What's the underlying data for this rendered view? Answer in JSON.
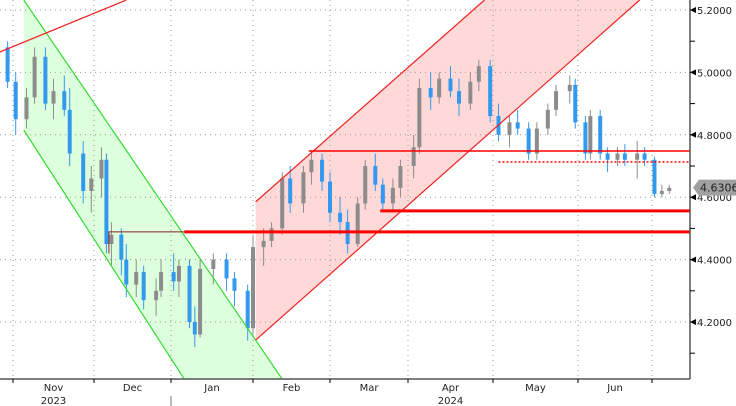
{
  "chart_data": {
    "type": "candlestick",
    "title": "",
    "ylim": [
      4.05,
      5.23
    ],
    "xlim": [
      "2023-10-26",
      "2024-07-15"
    ],
    "y_ticks": [
      "4.2000",
      "4.4000",
      "4.6000",
      "4.8000",
      "5.0000",
      "5.2000"
    ],
    "y_axis_side": "right",
    "x_month_labels": [
      "Nov",
      "Dec",
      "Jan",
      "Feb",
      "Mar",
      "Apr",
      "May",
      "Jun"
    ],
    "x_month_starts": [
      "2023-11-01",
      "2023-12-01",
      "2024-01-01",
      "2024-02-01",
      "2024-03-01",
      "2024-04-01",
      "2024-05-01",
      "2024-06-01",
      "2024-07-01"
    ],
    "x_year_labels": [
      {
        "label": "2023",
        "month": "2023-11"
      },
      {
        "label": "2024",
        "month": "2024-04"
      }
    ],
    "grid": true,
    "last_price": "4.6306",
    "colors": {
      "up": "#8c8c8c",
      "down": "#3399ee",
      "green_channel": "#33dd33",
      "green_fill": "#ddffdd",
      "red_channel": "#ee2222",
      "red_fill": "#ffd8d8",
      "level": "#ff0000",
      "last_price_bg": "#a0a0a0"
    },
    "candles": [
      [
        "2023-10-26",
        5.02,
        5.1,
        4.98,
        5.08
      ],
      [
        "2023-10-30",
        5.08,
        5.1,
        4.95,
        4.97
      ],
      [
        "2023-11-02",
        4.97,
        5.0,
        4.8,
        4.85
      ],
      [
        "2023-11-06",
        4.85,
        4.95,
        4.82,
        4.92
      ],
      [
        "2023-11-09",
        4.92,
        5.08,
        4.9,
        5.05
      ],
      [
        "2023-11-13",
        5.05,
        5.08,
        4.88,
        4.9
      ],
      [
        "2023-11-16",
        4.9,
        4.98,
        4.85,
        4.94
      ],
      [
        "2023-11-20",
        4.94,
        4.99,
        4.86,
        4.88
      ],
      [
        "2023-11-22",
        4.88,
        4.95,
        4.7,
        4.74
      ],
      [
        "2023-11-27",
        4.74,
        4.78,
        4.58,
        4.62
      ],
      [
        "2023-11-30",
        4.62,
        4.7,
        4.55,
        4.66
      ],
      [
        "2023-12-04",
        4.66,
        4.76,
        4.6,
        4.72
      ],
      [
        "2023-12-06",
        4.72,
        4.74,
        4.42,
        4.45
      ],
      [
        "2023-12-08",
        4.45,
        4.52,
        4.38,
        4.48
      ],
      [
        "2023-12-12",
        4.48,
        4.5,
        4.35,
        4.4
      ],
      [
        "2023-12-14",
        4.4,
        4.45,
        4.28,
        4.32
      ],
      [
        "2023-12-18",
        4.32,
        4.4,
        4.28,
        4.36
      ],
      [
        "2023-12-21",
        4.36,
        4.38,
        4.24,
        4.27
      ],
      [
        "2023-12-26",
        4.27,
        4.34,
        4.22,
        4.3
      ],
      [
        "2023-12-28",
        4.3,
        4.4,
        4.28,
        4.36
      ],
      [
        "2024-01-02",
        4.36,
        4.42,
        4.3,
        4.33
      ],
      [
        "2024-01-04",
        4.33,
        4.4,
        4.28,
        4.38
      ],
      [
        "2024-01-08",
        4.38,
        4.4,
        4.18,
        4.2
      ],
      [
        "2024-01-10",
        4.2,
        4.25,
        4.12,
        4.16
      ],
      [
        "2024-01-12",
        4.16,
        4.4,
        4.15,
        4.37
      ],
      [
        "2024-01-17",
        4.37,
        4.42,
        4.32,
        4.4
      ],
      [
        "2024-01-22",
        4.4,
        4.42,
        4.3,
        4.34
      ],
      [
        "2024-01-25",
        4.34,
        4.36,
        4.25,
        4.3
      ],
      [
        "2024-01-30",
        4.3,
        4.32,
        4.14,
        4.18
      ],
      [
        "2024-02-01",
        4.18,
        4.48,
        4.16,
        4.44
      ],
      [
        "2024-02-05",
        4.44,
        4.5,
        4.38,
        4.46
      ],
      [
        "2024-02-08",
        4.46,
        4.52,
        4.44,
        4.5
      ],
      [
        "2024-02-12",
        4.5,
        4.68,
        4.48,
        4.66
      ],
      [
        "2024-02-15",
        4.66,
        4.7,
        4.55,
        4.58
      ],
      [
        "2024-02-20",
        4.58,
        4.7,
        4.55,
        4.68
      ],
      [
        "2024-02-23",
        4.68,
        4.75,
        4.64,
        4.72
      ],
      [
        "2024-02-27",
        4.72,
        4.74,
        4.62,
        4.65
      ],
      [
        "2024-03-01",
        4.65,
        4.68,
        4.52,
        4.55
      ],
      [
        "2024-03-05",
        4.55,
        4.6,
        4.48,
        4.52
      ],
      [
        "2024-03-08",
        4.52,
        4.56,
        4.42,
        4.45
      ],
      [
        "2024-03-12",
        4.45,
        4.6,
        4.44,
        4.58
      ],
      [
        "2024-03-15",
        4.58,
        4.72,
        4.56,
        4.7
      ],
      [
        "2024-03-19",
        4.7,
        4.74,
        4.62,
        4.64
      ],
      [
        "2024-03-22",
        4.64,
        4.66,
        4.56,
        4.58
      ],
      [
        "2024-03-26",
        4.58,
        4.66,
        4.56,
        4.63
      ],
      [
        "2024-03-29",
        4.63,
        4.72,
        4.6,
        4.7
      ],
      [
        "2024-04-03",
        4.7,
        4.8,
        4.66,
        4.76
      ],
      [
        "2024-04-05",
        4.76,
        4.98,
        4.74,
        4.95
      ],
      [
        "2024-04-09",
        4.95,
        5.0,
        4.88,
        4.92
      ],
      [
        "2024-04-12",
        4.92,
        5.0,
        4.9,
        4.98
      ],
      [
        "2024-04-16",
        4.98,
        5.02,
        4.92,
        4.94
      ],
      [
        "2024-04-19",
        4.94,
        4.98,
        4.86,
        4.9
      ],
      [
        "2024-04-23",
        4.9,
        5.0,
        4.88,
        4.97
      ],
      [
        "2024-04-26",
        4.97,
        5.04,
        4.94,
        5.02
      ],
      [
        "2024-04-30",
        5.02,
        5.04,
        4.84,
        4.86
      ],
      [
        "2024-05-03",
        4.86,
        4.9,
        4.78,
        4.8
      ],
      [
        "2024-05-07",
        4.8,
        4.86,
        4.76,
        4.84
      ],
      [
        "2024-05-10",
        4.84,
        4.88,
        4.8,
        4.82
      ],
      [
        "2024-05-14",
        4.82,
        4.84,
        4.72,
        4.74
      ],
      [
        "2024-05-17",
        4.74,
        4.84,
        4.72,
        4.82
      ],
      [
        "2024-05-21",
        4.82,
        4.9,
        4.8,
        4.88
      ],
      [
        "2024-05-24",
        4.88,
        4.96,
        4.86,
        4.94
      ],
      [
        "2024-05-29",
        4.94,
        4.99,
        4.9,
        4.96
      ],
      [
        "2024-05-31",
        4.96,
        4.98,
        4.82,
        4.84
      ],
      [
        "2024-06-04",
        4.84,
        4.86,
        4.72,
        4.74
      ],
      [
        "2024-06-06",
        4.74,
        4.88,
        4.72,
        4.86
      ],
      [
        "2024-06-10",
        4.86,
        4.88,
        4.72,
        4.74
      ],
      [
        "2024-06-13",
        4.74,
        4.76,
        4.68,
        4.72
      ],
      [
        "2024-06-17",
        4.72,
        4.76,
        4.7,
        4.74
      ],
      [
        "2024-06-20",
        4.74,
        4.77,
        4.7,
        4.72
      ],
      [
        "2024-06-25",
        4.72,
        4.78,
        4.66,
        4.74
      ],
      [
        "2024-06-28",
        4.74,
        4.76,
        4.7,
        4.72
      ],
      [
        "2024-07-02",
        4.72,
        4.73,
        4.6,
        4.61
      ],
      [
        "2024-07-05",
        4.61,
        4.64,
        4.6,
        4.62
      ],
      [
        "2024-07-08",
        4.62,
        4.64,
        4.61,
        4.63
      ]
    ],
    "annotations": {
      "green_channel": {
        "upper": [
          [
            "2023-11-05",
            5.232
          ],
          [
            "2024-02-12",
            4.017
          ]
        ],
        "lower": [
          [
            "2023-11-05",
            4.815
          ],
          [
            "2024-01-06",
            4.017
          ]
        ]
      },
      "red_channel": {
        "upper": [
          [
            "2024-02-02",
            4.585
          ],
          [
            "2024-04-28",
            5.232
          ]
        ],
        "lower": [
          [
            "2024-02-02",
            4.142
          ],
          [
            "2024-06-26",
            5.232
          ]
        ]
      },
      "trend_line": [
        [
          "2023-10-27",
          5.065
        ],
        [
          "2023-12-14",
          5.232
        ]
      ],
      "levels": [
        {
          "price": 4.748,
          "from": "2024-02-22",
          "style": "thin"
        },
        {
          "price": 4.713,
          "from": "2024-05-03",
          "style": "dotted"
        },
        {
          "price": 4.556,
          "from": "2024-03-21",
          "style": "thick"
        },
        {
          "price": 4.489,
          "from": "2024-01-06",
          "style": "thick"
        }
      ],
      "bracket": {
        "price": 4.489,
        "from": "2023-12-07",
        "to": "2024-01-06",
        "drop_to": 4.42
      }
    }
  }
}
